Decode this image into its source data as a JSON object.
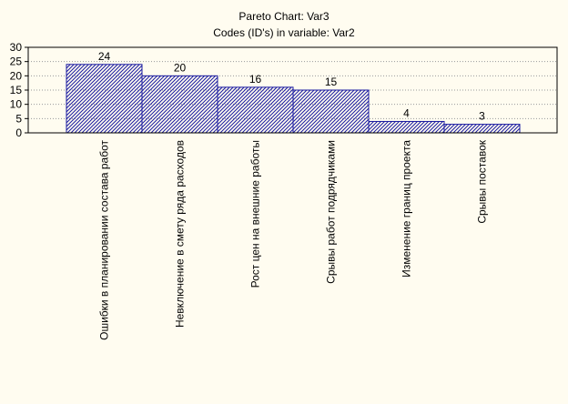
{
  "chart_data": {
    "type": "bar",
    "title": "Pareto Chart: Var3",
    "subtitle": "Codes (ID's) in variable: Var2",
    "categories": [
      "Ошибки в планировании состава работ",
      "Невключение в смету ряда расходов",
      "Рост цен на внешние работы",
      "Срывы работ подрядчиками",
      "Изменение границ проекта",
      "Срывы поставок"
    ],
    "values": [
      24,
      20,
      16,
      15,
      4,
      3
    ],
    "value_labels": [
      "24",
      "20",
      "16",
      "15",
      "4",
      "3"
    ],
    "ylim": [
      0,
      30
    ],
    "yticks": [
      0,
      5,
      10,
      15,
      20,
      25,
      30
    ],
    "ytick_labels": [
      "0",
      "5",
      "10",
      "15",
      "20",
      "25",
      "30"
    ],
    "xlabel": "",
    "ylabel": "",
    "grid": true,
    "bar_fill": "hatched",
    "colors": {
      "bar_stroke": "#1a1aa0",
      "hatch": "#1a1aa0",
      "grid": "#9a9a9a",
      "axis": "#000000",
      "background": "#fffcf0"
    }
  }
}
